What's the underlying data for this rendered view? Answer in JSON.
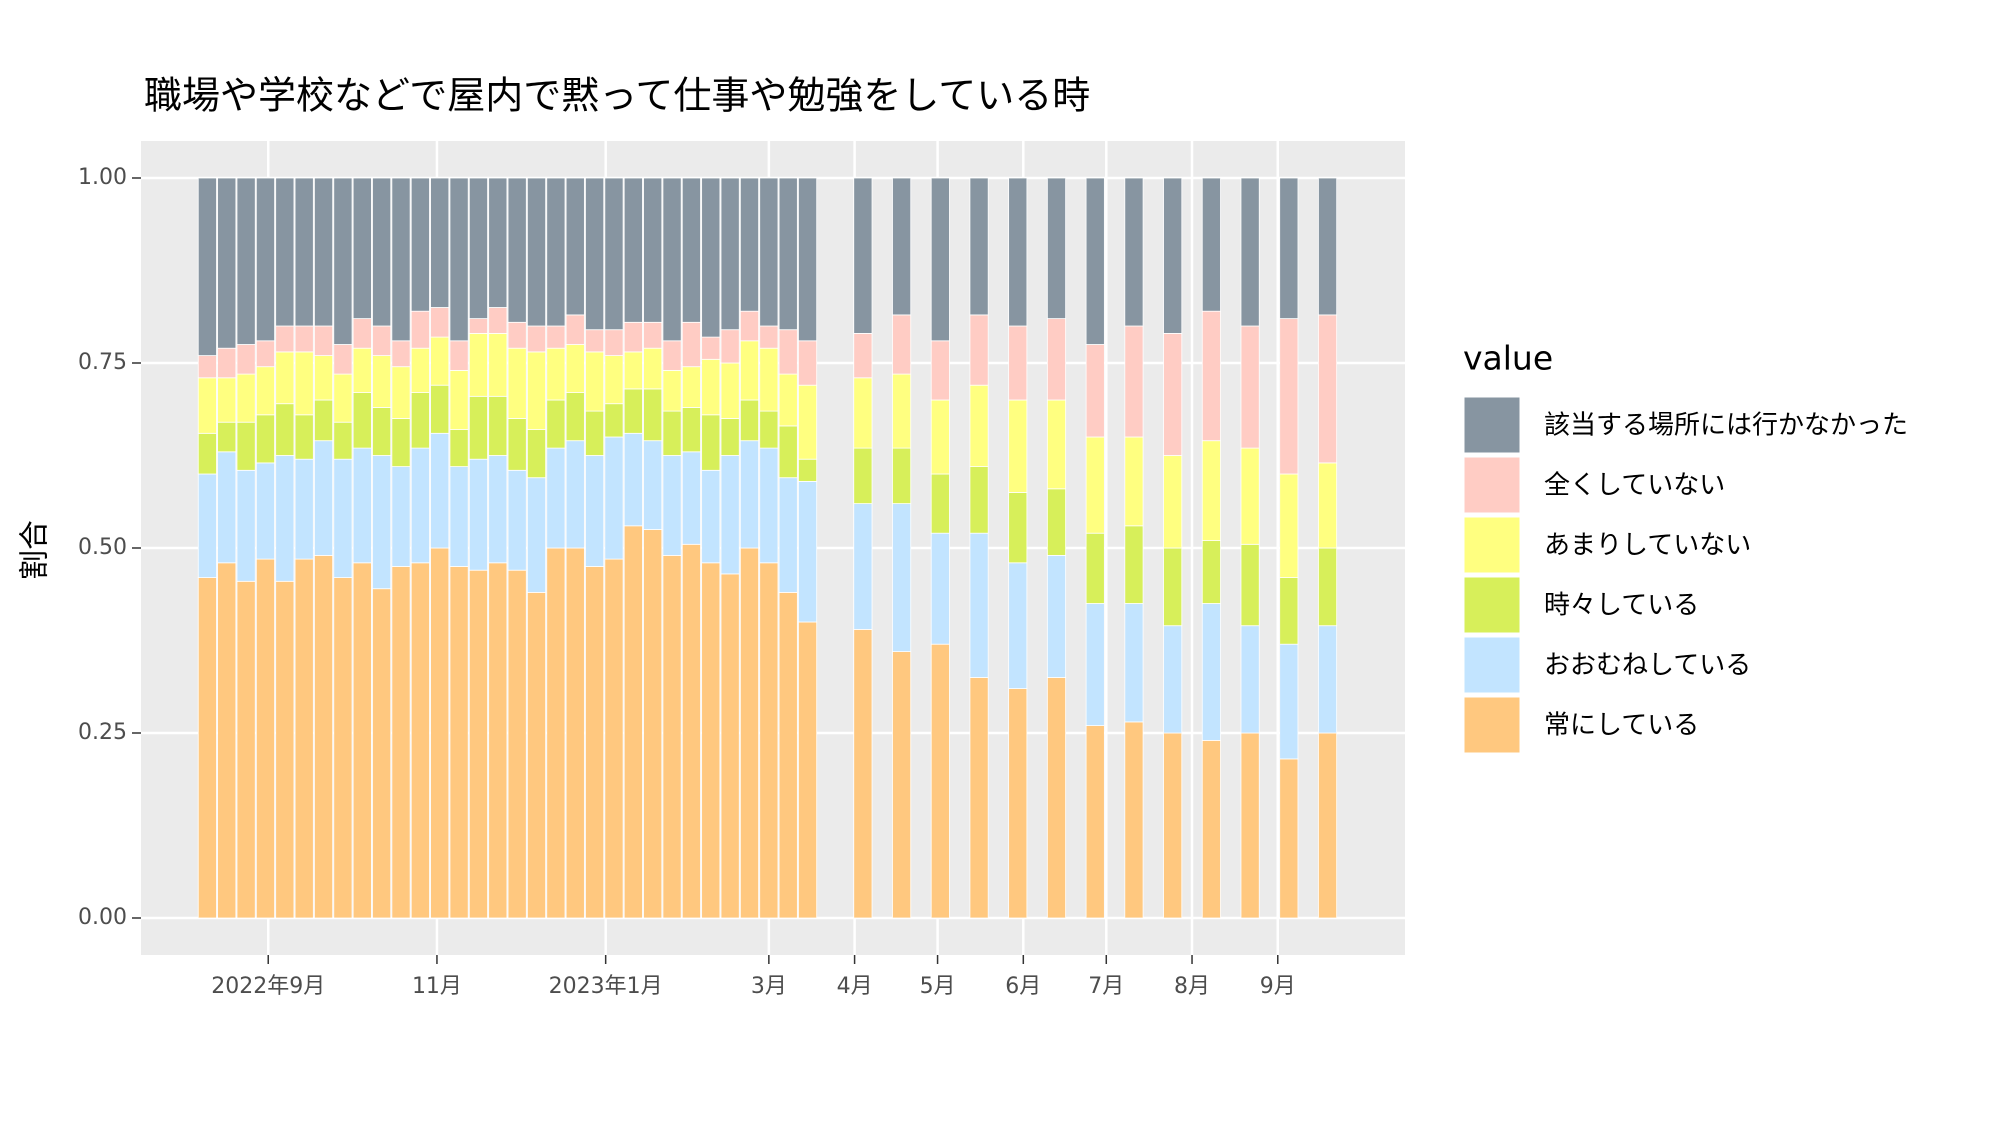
{
  "chart_data": {
    "type": "bar",
    "stacked": true,
    "title": "職場や学校などで屋内で黙って仕事や勉強をしている時",
    "y_label": "割合",
    "legend_title": "value",
    "x": [
      19214,
      19221,
      19228,
      19235,
      19242,
      19249,
      19256,
      19263,
      19270,
      19277,
      19284,
      19291,
      19298,
      19305,
      19312,
      19319,
      19326,
      19333,
      19340,
      19347,
      19354,
      19361,
      19368,
      19375,
      19382,
      19389,
      19396,
      19403,
      19410,
      19417,
      19424,
      19431,
      19451,
      19465,
      19479,
      19493,
      19507,
      19521,
      19535,
      19549,
      19563,
      19577,
      19591,
      19605,
      19619
    ],
    "xlim": [
      19190,
      19647
    ],
    "xticks": [
      {
        "value": 19236,
        "label": "2022年9月"
      },
      {
        "value": 19297,
        "label": "11月"
      },
      {
        "value": 19358,
        "label": "2023年1月"
      },
      {
        "value": 19417,
        "label": "3月"
      },
      {
        "value": 19448,
        "label": "4月"
      },
      {
        "value": 19478,
        "label": "5月"
      },
      {
        "value": 19509,
        "label": "6月"
      },
      {
        "value": 19539,
        "label": "7月"
      },
      {
        "value": 19570,
        "label": "8月"
      },
      {
        "value": 19601,
        "label": "9月"
      }
    ],
    "ylim": [
      -0.05,
      1.05
    ],
    "yticks": [
      {
        "value": 0,
        "label": "0.00"
      },
      {
        "value": 0.25,
        "label": "0.25"
      },
      {
        "value": 0.5,
        "label": "0.50"
      },
      {
        "value": 0.75,
        "label": "0.75"
      },
      {
        "value": 1,
        "label": "1.00"
      }
    ],
    "grid": true,
    "legend": "right",
    "series": [
      {
        "name": "該当する場所には行かなかった",
        "color": "#8795a1",
        "values": [
          0.24,
          0.23,
          0.225,
          0.22,
          0.2,
          0.2,
          0.2,
          0.225,
          0.19,
          0.2,
          0.22,
          0.18,
          0.175,
          0.22,
          0.19,
          0.175,
          0.195,
          0.2,
          0.2,
          0.185,
          0.205,
          0.205,
          0.195,
          0.195,
          0.22,
          0.195,
          0.215,
          0.205,
          0.18,
          0.2,
          0.205,
          0.22,
          0.21,
          0.185,
          0.22,
          0.185,
          0.2,
          0.19,
          0.225,
          0.2,
          0.21,
          0.18,
          0.2,
          0.19,
          0.185
        ]
      },
      {
        "name": "全くしていない",
        "color": "#ffccc4",
        "values": [
          0.03,
          0.04,
          0.04,
          0.035,
          0.035,
          0.035,
          0.04,
          0.04,
          0.04,
          0.04,
          0.035,
          0.05,
          0.04,
          0.04,
          0.02,
          0.035,
          0.035,
          0.035,
          0.03,
          0.04,
          0.03,
          0.035,
          0.04,
          0.035,
          0.04,
          0.06,
          0.03,
          0.045,
          0.04,
          0.03,
          0.06,
          0.06,
          0.06,
          0.08,
          0.08,
          0.095,
          0.1,
          0.11,
          0.125,
          0.15,
          0.165,
          0.175,
          0.165,
          0.21,
          0.2
        ]
      },
      {
        "name": "あまりしていない",
        "color": "#ffff80",
        "values": [
          0.075,
          0.06,
          0.065,
          0.065,
          0.07,
          0.085,
          0.06,
          0.065,
          0.06,
          0.07,
          0.07,
          0.06,
          0.065,
          0.08,
          0.085,
          0.085,
          0.095,
          0.105,
          0.07,
          0.065,
          0.08,
          0.065,
          0.05,
          0.055,
          0.055,
          0.055,
          0.075,
          0.075,
          0.08,
          0.085,
          0.07,
          0.1,
          0.095,
          0.1,
          0.1,
          0.11,
          0.125,
          0.12,
          0.13,
          0.12,
          0.125,
          0.135,
          0.13,
          0.14,
          0.115
        ]
      },
      {
        "name": "時々している",
        "color": "#d7ef5a",
        "values": [
          0.055,
          0.04,
          0.065,
          0.065,
          0.07,
          0.06,
          0.055,
          0.05,
          0.075,
          0.065,
          0.065,
          0.075,
          0.065,
          0.05,
          0.085,
          0.08,
          0.07,
          0.065,
          0.065,
          0.065,
          0.06,
          0.045,
          0.06,
          0.07,
          0.06,
          0.06,
          0.075,
          0.05,
          0.055,
          0.05,
          0.07,
          0.03,
          0.075,
          0.075,
          0.08,
          0.09,
          0.095,
          0.09,
          0.095,
          0.105,
          0.105,
          0.085,
          0.11,
          0.09,
          0.105
        ]
      },
      {
        "name": "おおむねしている",
        "color": "#c2e4ff",
        "values": [
          0.14,
          0.15,
          0.15,
          0.13,
          0.17,
          0.135,
          0.155,
          0.16,
          0.155,
          0.18,
          0.135,
          0.155,
          0.155,
          0.135,
          0.15,
          0.145,
          0.135,
          0.155,
          0.135,
          0.145,
          0.15,
          0.165,
          0.125,
          0.12,
          0.135,
          0.125,
          0.125,
          0.16,
          0.145,
          0.155,
          0.155,
          0.19,
          0.17,
          0.2,
          0.15,
          0.195,
          0.17,
          0.165,
          0.165,
          0.16,
          0.145,
          0.185,
          0.145,
          0.155,
          0.145
        ]
      },
      {
        "name": "常にしている",
        "color": "#ffc87f",
        "values": [
          0.46,
          0.48,
          0.455,
          0.485,
          0.455,
          0.485,
          0.49,
          0.46,
          0.48,
          0.445,
          0.475,
          0.48,
          0.5,
          0.475,
          0.47,
          0.48,
          0.47,
          0.44,
          0.5,
          0.5,
          0.475,
          0.485,
          0.53,
          0.525,
          0.49,
          0.505,
          0.48,
          0.465,
          0.5,
          0.48,
          0.44,
          0.4,
          0.39,
          0.36,
          0.37,
          0.325,
          0.31,
          0.325,
          0.26,
          0.265,
          0.25,
          0.24,
          0.25,
          0.215,
          0.25
        ]
      }
    ]
  }
}
